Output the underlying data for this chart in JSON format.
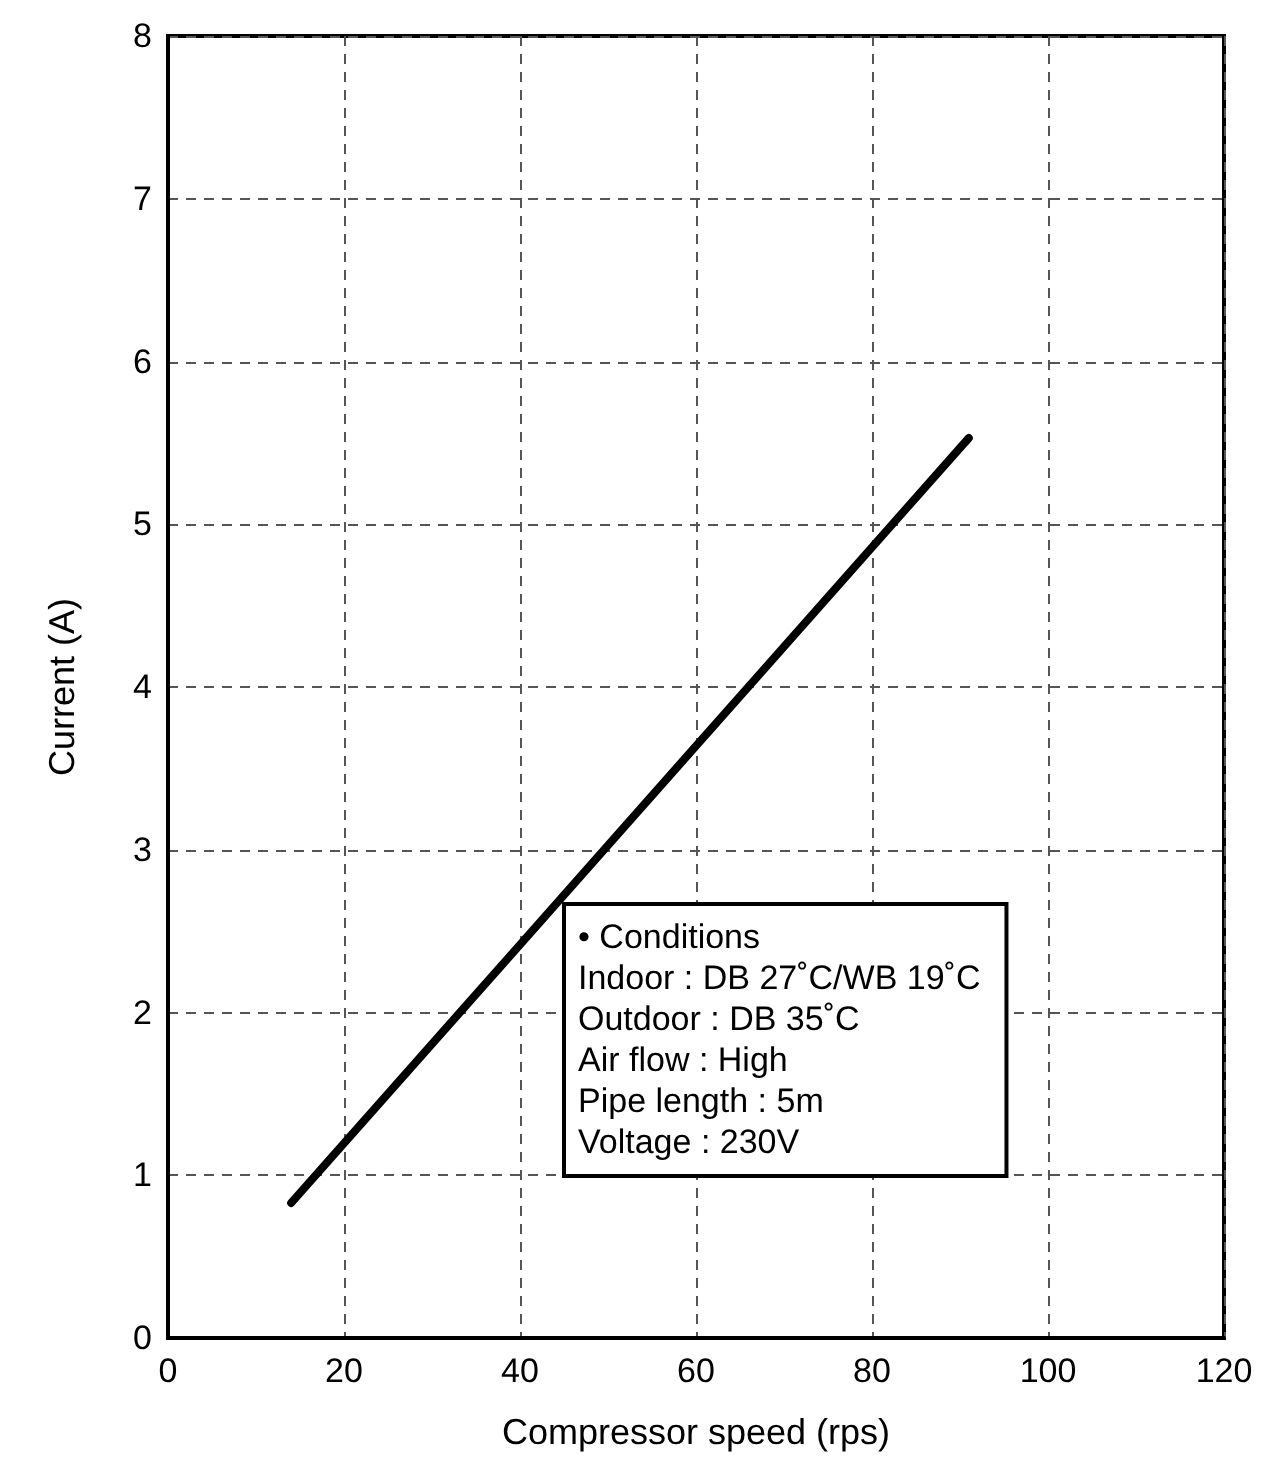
{
  "chart_data": {
    "type": "line",
    "xlabel": "Compressor speed (rps)",
    "ylabel": "Current (A)",
    "x": [
      14,
      91
    ],
    "series": [
      {
        "color": "#000000",
        "values": [
          0.83,
          5.53
        ]
      }
    ],
    "xlim": [
      0,
      120
    ],
    "xticks": [
      0,
      20,
      40,
      60,
      80,
      100,
      120
    ],
    "ylim": [
      0,
      8
    ],
    "yticks": [
      0,
      1,
      2,
      3,
      4,
      5,
      6,
      7,
      8
    ],
    "grid": true,
    "marker": "none",
    "line_style": "solid",
    "annotations": [
      "• Conditions",
      "Indoor : DB 27˚C/WB 19˚C",
      "Outdoor : DB 35˚C",
      "Air flow : High",
      "Pipe length : 5m",
      "Voltage : 230V"
    ]
  }
}
